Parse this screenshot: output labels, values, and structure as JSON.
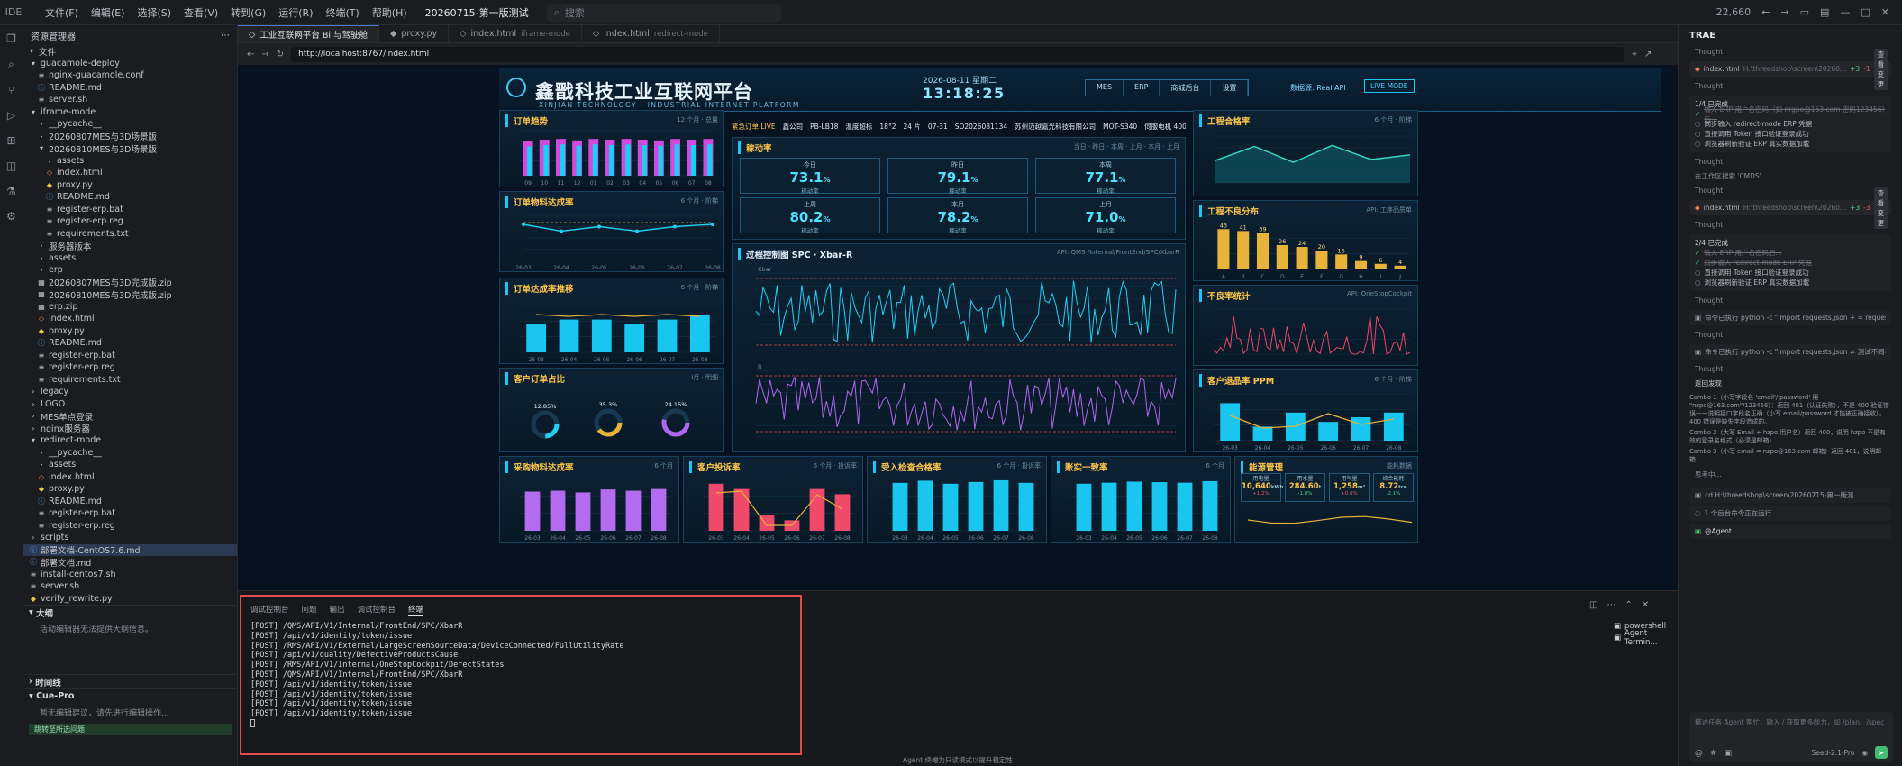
{
  "titlebar": {
    "brand": "IDE",
    "menus": [
      "文件(F)",
      "编辑(E)",
      "选择(S)",
      "查看(V)",
      "转到(G)",
      "运行(R)",
      "终端(T)",
      "帮助(H)"
    ],
    "project": "20260715-第一版测试",
    "search_placeholder": "搜索",
    "counter": "22,660"
  },
  "explorer": {
    "title": "资源管理器",
    "section_files": "文件",
    "tree": [
      {
        "label": "guacamole-deploy",
        "depth": 0,
        "kind": "folder-open"
      },
      {
        "label": "nginx-guacamole.conf",
        "depth": 1,
        "kind": "file"
      },
      {
        "label": "README.md",
        "depth": 1,
        "kind": "md"
      },
      {
        "label": "server.sh",
        "depth": 1,
        "kind": "file"
      },
      {
        "label": "iframe-mode",
        "depth": 0,
        "kind": "folder-open"
      },
      {
        "label": "__pycache__",
        "depth": 1,
        "kind": "folder"
      },
      {
        "label": "20260807MES与3D场景版",
        "depth": 1,
        "kind": "folder"
      },
      {
        "label": "20260810MES与3D场景版",
        "depth": 1,
        "kind": "folder-open"
      },
      {
        "label": "assets",
        "depth": 2,
        "kind": "folder"
      },
      {
        "label": "index.html",
        "depth": 2,
        "kind": "html"
      },
      {
        "label": "proxy.py",
        "depth": 2,
        "kind": "py"
      },
      {
        "label": "README.md",
        "depth": 2,
        "kind": "md"
      },
      {
        "label": "register-erp.bat",
        "depth": 2,
        "kind": "file"
      },
      {
        "label": "register-erp.reg",
        "depth": 2,
        "kind": "file"
      },
      {
        "label": "requirements.txt",
        "depth": 2,
        "kind": "file"
      },
      {
        "label": "服务器版本",
        "depth": 1,
        "kind": "folder"
      },
      {
        "label": "assets",
        "depth": 1,
        "kind": "folder"
      },
      {
        "label": "erp",
        "depth": 1,
        "kind": "folder"
      },
      {
        "label": "20260807MES与3D完成版.zip",
        "depth": 1,
        "kind": "zip"
      },
      {
        "label": "20260810MES与3D完成版.zip",
        "depth": 1,
        "kind": "zip"
      },
      {
        "label": "erp.zip",
        "depth": 1,
        "kind": "zip"
      },
      {
        "label": "index.html",
        "depth": 1,
        "kind": "html"
      },
      {
        "label": "proxy.py",
        "depth": 1,
        "kind": "py"
      },
      {
        "label": "README.md",
        "depth": 1,
        "kind": "md"
      },
      {
        "label": "register-erp.bat",
        "depth": 1,
        "kind": "file"
      },
      {
        "label": "register-erp.reg",
        "depth": 1,
        "kind": "file"
      },
      {
        "label": "requirements.txt",
        "depth": 1,
        "kind": "file"
      },
      {
        "label": "legacy",
        "depth": 0,
        "kind": "folder"
      },
      {
        "label": "LOGO",
        "depth": 0,
        "kind": "folder"
      },
      {
        "label": "MES单点登录",
        "depth": 0,
        "kind": "folder"
      },
      {
        "label": "nginx服务器",
        "depth": 0,
        "kind": "folder"
      },
      {
        "label": "redirect-mode",
        "depth": 0,
        "kind": "folder-open"
      },
      {
        "label": "__pycache__",
        "depth": 1,
        "kind": "folder"
      },
      {
        "label": "assets",
        "depth": 1,
        "kind": "folder"
      },
      {
        "label": "index.html",
        "depth": 1,
        "kind": "html"
      },
      {
        "label": "proxy.py",
        "depth": 1,
        "kind": "py"
      },
      {
        "label": "README.md",
        "depth": 1,
        "kind": "md"
      },
      {
        "label": "register-erp.bat",
        "depth": 1,
        "kind": "file"
      },
      {
        "label": "register-erp.reg",
        "depth": 1,
        "kind": "file"
      },
      {
        "label": "scripts",
        "depth": 0,
        "kind": "folder"
      },
      {
        "label": "部署文档-CentOS7.6.md",
        "depth": 0,
        "kind": "md",
        "selected": true
      },
      {
        "label": "部署文档.md",
        "depth": 0,
        "kind": "md"
      },
      {
        "label": "install-centos7.sh",
        "depth": 0,
        "kind": "file"
      },
      {
        "label": "server.sh",
        "depth": 0,
        "kind": "file"
      },
      {
        "label": "verify_rewrite.py",
        "depth": 0,
        "kind": "py"
      }
    ],
    "section_outline": "大纲",
    "outline_note": "活动编辑器无法提供大纲信息。",
    "section_timeline": "时间线",
    "section_cue": "Cue-Pro",
    "cue_note": "暂无编辑建议，请先进行编辑操作...",
    "bottom_hint": "跳转至所选问题"
  },
  "tabs": [
    {
      "label": "工业互联网平台 Bi 与驾驶舱",
      "sub": "",
      "active": true
    },
    {
      "label": "proxy.py",
      "sub": "",
      "active": false
    },
    {
      "label": "index.html",
      "sub": "iframe-mode",
      "active": false
    },
    {
      "label": "index.html",
      "sub": "redirect-mode",
      "active": false
    }
  ],
  "url": "http://localhost:8767/index.html",
  "dashboard": {
    "title": "鑫戬科技工业互联网平台",
    "subtitle": "XINJIAN TECHNOLOGY · INDUSTRIAL INTERNET PLATFORM",
    "date": "2026-08-11 星期二",
    "time": "13:18:25",
    "navs": [
      "MES",
      "ERP",
      "商城后台",
      "设置"
    ],
    "datasrc": "数据源: Real API",
    "live": "LIVE MODE",
    "ticker": {
      "live_label": "紧急订单 LIVE",
      "items": [
        "鑫公司",
        "PB-LB18",
        "温度超标",
        "18°2",
        "24 片",
        "07-31",
        "SO2026081134",
        "苏州迈越嘉光科技有限公司",
        "MOT-S340",
        "伺服电机 400W"
      ]
    },
    "panels": {
      "order_trend": {
        "title": "订单趋势",
        "note": "12 个月 · 总量",
        "legend": [
          "累积",
          "月份",
          "同期值"
        ]
      },
      "order_rate": {
        "title": "订单物料达成率",
        "note": "6 个月 · 阶梯"
      },
      "order_trend2": {
        "title": "订单达成率推移",
        "note": "6 个月 · 阶梯",
        "legend": [
          "同期统计",
          "计划统计",
          "达成率"
        ]
      },
      "customer": {
        "title": "客户订单占比",
        "note": "Ⅰ月 · 明细",
        "ring_labels": [
          "12.85%",
          "35.3%",
          "24.15%"
        ],
        "note2": "比较"
      },
      "oee": {
        "title": "稼动率",
        "note": "当日 · 昨日 · 本周 · 上月 · 本月 · 上月"
      },
      "spc": {
        "title": "过程控制图 SPC · Xbar-R",
        "note": "API: QMS /Internal/FrontEnd/SPC/XbarR",
        "legend": [
          "Xbar",
          "Range"
        ],
        "xbar_label": "Xbar",
        "r_label": "R"
      },
      "yield": {
        "title": "工程合格率",
        "note": "6 个月 · 阶梯"
      },
      "defect": {
        "title": "工程不良分布",
        "note": "API: 工序品质单"
      },
      "defect_stat": {
        "title": "不良率统计",
        "note": "API: OneStopCockpit",
        "legend": [
          "不良数",
          "不良率"
        ]
      },
      "ppm": {
        "title": "客户退品率 PPM",
        "note": "6 个月 · 阶梯",
        "legend": [
          "退品数量",
          "退品PPM"
        ]
      },
      "purchase": {
        "title": "采购物料达成率",
        "note": "6 个月",
        "legend": [
          "采购量",
          "达成率"
        ]
      },
      "complaint": {
        "title": "客户投诉率",
        "note": "6 个月 · 投诉率",
        "legend": [
          "投诉数",
          "投诉率"
        ]
      },
      "incoming": {
        "title": "受入检查合格率",
        "note": "6 个月 · 投诉率",
        "legend": [
          "检验",
          "合格率"
        ]
      },
      "stock": {
        "title": "账实一致率",
        "note": "6 个月",
        "legend": [
          "实物",
          "账面",
          "一致率"
        ]
      },
      "energy": {
        "title": "能源管理",
        "note": "能耗数据",
        "boxes": [
          {
            "l": "用电量",
            "v": "10,640",
            "u": "kWh",
            "c": "+1.2%"
          },
          {
            "l": "用水量",
            "v": "284.60",
            "u": "t",
            "c": "-1.8%"
          },
          {
            "l": "用气量",
            "v": "1,258",
            "u": "m³",
            "c": "+0.6%"
          },
          {
            "l": "综合能耗",
            "v": "8.72",
            "u": "tce",
            "c": "-2.1%"
          }
        ]
      }
    }
  },
  "chart_data": [
    {
      "type": "bar",
      "title": "订单趋势",
      "categories": [
        "26-09",
        "26-10",
        "26-11",
        "26-12",
        "26-01",
        "26-02",
        "26-03",
        "26-04",
        "26-05",
        "26-06",
        "26-07",
        "26-08"
      ],
      "series": [
        {
          "name": "月份",
          "values": [
            4.6,
            4.8,
            4.9,
            4.7,
            4.9,
            4.8,
            4.9,
            4.8,
            4.7,
            4.9,
            4.8,
            4.9
          ]
        }
      ],
      "ylim": [
        0,
        6
      ]
    },
    {
      "type": "line",
      "title": "订单物料达成率",
      "categories": [
        "26-03",
        "26-04",
        "26-05",
        "26-06",
        "26-07",
        "26-08"
      ],
      "values": [
        96,
        93,
        95,
        93,
        95,
        96
      ],
      "ylim": [
        80,
        100
      ]
    },
    {
      "type": "bar",
      "title": "客户退品率 PPM",
      "categories": [
        "26-03",
        "26-04",
        "26-05",
        "26-06",
        "26-07",
        "26-08"
      ],
      "series": [
        {
          "name": "退品数量",
          "values": [
            8,
            3,
            6,
            4,
            5,
            6
          ]
        }
      ],
      "ylim": [
        0,
        10
      ]
    },
    {
      "type": "bar",
      "title": "工程不良分布",
      "categories": [
        "A",
        "B",
        "C",
        "D",
        "E",
        "F",
        "G",
        "H",
        "I",
        "J"
      ],
      "values": [
        43,
        41,
        39,
        26,
        24,
        20,
        16,
        9,
        6,
        4
      ]
    }
  ],
  "oee_kpis": [
    {
      "label": "今日",
      "value": "73.1",
      "unit": "%",
      "sub": "稼动率"
    },
    {
      "label": "昨日",
      "value": "79.1",
      "unit": "%",
      "sub": "稼动率"
    },
    {
      "label": "本周",
      "value": "77.1",
      "unit": "%",
      "sub": "稼动率"
    },
    {
      "label": "上周",
      "value": "80.2",
      "unit": "%",
      "sub": "稼动率"
    },
    {
      "label": "本月",
      "value": "78.2",
      "unit": "%",
      "sub": "稼动率"
    },
    {
      "label": "上月",
      "value": "71.0",
      "unit": "%",
      "sub": "稼动率"
    }
  ],
  "bottom": {
    "tabs": [
      "调试控制台",
      "问题",
      "输出",
      "调试控制台",
      "终端"
    ],
    "active_tab": "终端",
    "terminal_lines": [
      "[POST] /QMS/API/V1/Internal/FrontEnd/SPC/XbarR",
      "[POST] /api/v1/identity/token/issue",
      "[POST] /RMS/API/V1/External/LargeScreenSourceData/DeviceConnected/FullUtilityRate",
      "[POST] /api/v1/quality/DefectiveProductsCause",
      "[POST] /RMS/API/V1/Internal/OneStopCockpit/DefectStates",
      "[POST] /QMS/API/V1/Internal/FrontEnd/SPC/XbarR",
      "[POST] /api/v1/identity/token/issue",
      "[POST] /api/v1/identity/token/issue",
      "[POST] /api/v1/identity/token/issue",
      "[POST] /api/v1/identity/token/issue"
    ],
    "terminal_list": [
      "powershell",
      "Agent Termin..."
    ],
    "status": "Agent 终端为只读模式以提升稳定性"
  },
  "ai": {
    "title": "TRAE",
    "thought": "Thought",
    "file1": {
      "name": "index.html",
      "path": "H:\\threedshop\\screen\\20260...",
      "add": "+3",
      "del": "-1",
      "btn": "查看变更"
    },
    "file2": {
      "name": "index.html",
      "path": "H:\\threedshop\\screen\\20260...",
      "add": "+3",
      "del": "-3",
      "btn": "查看变更"
    },
    "todo1_title": "1/4 已完成",
    "todo1": [
      {
        "t": "输入 ERP 用户名密码（如 nrgpo@163.com 密码123456）后...",
        "done": true
      },
      {
        "t": "同步输入 redirect-mode ERP 凭据",
        "done": false
      },
      {
        "t": "直接调用 Token 接口验证登录成功",
        "done": false
      },
      {
        "t": "浏览器刷新验证 ERP 真实数据加载",
        "done": false
      }
    ],
    "search_line": "在工作区搜索 'CMDS'",
    "todo2_title": "2/4 已完成",
    "todo2": [
      {
        "t": "输入 ERP 用户名密码后...",
        "done": true
      },
      {
        "t": "同步输入 redirect-mode ERP 凭据",
        "done": true
      },
      {
        "t": "直接调用 Token 接口验证登录成功",
        "done": false
      },
      {
        "t": "浏览器刷新验证 ERP 真实数据加载",
        "done": false
      }
    ],
    "cmd1": "命令已执行 python -c \"import requests,json + = requests.p...",
    "cmd2": "命令已执行 python -c \"import requests,json ≠ 测试不同参数...",
    "result_label": "返回发现",
    "combo_lines": [
      "Combo 1（小写字段名 'email'/'password' 用 \"nzpo@163.com\"/123456）：返回 401（认证失败），不是 400 验证错误——说明接口字段名正确（小写 email/password 才能被正确接收），400 错误是缺失字段造成的。",
      "Combo 2（大写 Email + hzpo 用户名）返回 400，说明 hzpo 不是有效的登录名格式（必须是邮箱）",
      "Combo 3（小写 email = nzpo@163.com 邮箱）返回 401，说明邮箱..."
    ],
    "thinking": "思考中...",
    "run_cmd": "cd H:\\threedshop\\screen\\20260715-第一版测...",
    "run_pending": "1 个后台命令正在运行",
    "agent_label": "@Agent",
    "input_placeholder": "描述任务 Agent 帮忙，输入 / 获取更多能力，如 /plan、/spec",
    "model": "Seed-2.1-Pro"
  }
}
